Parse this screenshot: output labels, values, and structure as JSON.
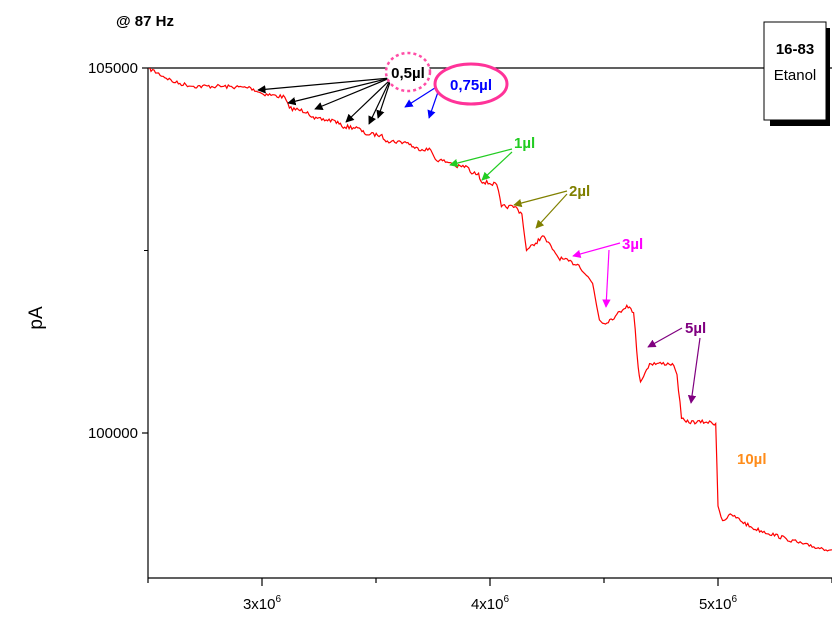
{
  "chart_data": {
    "type": "line",
    "title": "@ 87 Hz",
    "xlabel": "",
    "ylabel": "pA",
    "xlim": [
      2500000,
      5500000
    ],
    "ylim": [
      97600,
      105000
    ],
    "y_ticks": [
      {
        "value": 100000,
        "label": "100000"
      },
      {
        "value": 105000,
        "label": "105000"
      }
    ],
    "x_ticks": [
      {
        "value": 3000000,
        "base": "3x10",
        "exp": "6"
      },
      {
        "value": 4000000,
        "base": "4x10",
        "exp": "6"
      },
      {
        "value": 5000000,
        "base": "5x10",
        "exp": "6"
      }
    ],
    "legend": {
      "id": "16-83",
      "name": "Etanol",
      "position": "top-right"
    },
    "series": [
      {
        "color": "#ff0000",
        "x": [
          2500000,
          2620000,
          2700000,
          2800000,
          2950000,
          3000000,
          3100000,
          3120000,
          3200000,
          3230000,
          3320000,
          3350000,
          3420000,
          3450000,
          3520000,
          3550000,
          3640000,
          3670000,
          3740000,
          3760000,
          3830000,
          3850000,
          3900000,
          3920000,
          3950000,
          3960000,
          4030000,
          4050000,
          4110000,
          4140000,
          4160000,
          4200000,
          4230000,
          4280000,
          4300000,
          4390000,
          4450000,
          4480000,
          4500000,
          4550000,
          4600000,
          4630000,
          4650000,
          4660000,
          4700000,
          4800000,
          4820000,
          4840000,
          4860000,
          4950000,
          4990000,
          5000000,
          5020000,
          5060000,
          5150000,
          5300000,
          5400000,
          5500000
        ],
        "y": [
          105000,
          104800,
          104750,
          104750,
          104730,
          104650,
          104600,
          104450,
          104400,
          104300,
          104280,
          104200,
          104180,
          104100,
          104080,
          104000,
          103980,
          103900,
          103880,
          103750,
          103700,
          103650,
          103650,
          103550,
          103560,
          103450,
          103400,
          103100,
          103100,
          103000,
          102500,
          102600,
          102700,
          102500,
          102400,
          102300,
          102050,
          101550,
          101500,
          101600,
          101750,
          101650,
          100900,
          100700,
          100950,
          100950,
          100800,
          100200,
          100150,
          100150,
          100130,
          99000,
          98800,
          98880,
          98700,
          98550,
          98450,
          98400
        ]
      }
    ],
    "annotations": [
      {
        "text": "0,5µl",
        "color": "#000000",
        "circle": "dotted",
        "circle_color": "#ff4da6"
      },
      {
        "text": "0,75µl",
        "color": "#0000ff",
        "circle": "solid",
        "circle_color": "#ff3399"
      },
      {
        "text": "1µl",
        "color": "#22cc22"
      },
      {
        "text": "2µl",
        "color": "#808000"
      },
      {
        "text": "3µl",
        "color": "#ff00ff"
      },
      {
        "text": "5µl",
        "color": "#800080"
      },
      {
        "text": "10µl",
        "color": "#ff8c1a"
      }
    ]
  }
}
